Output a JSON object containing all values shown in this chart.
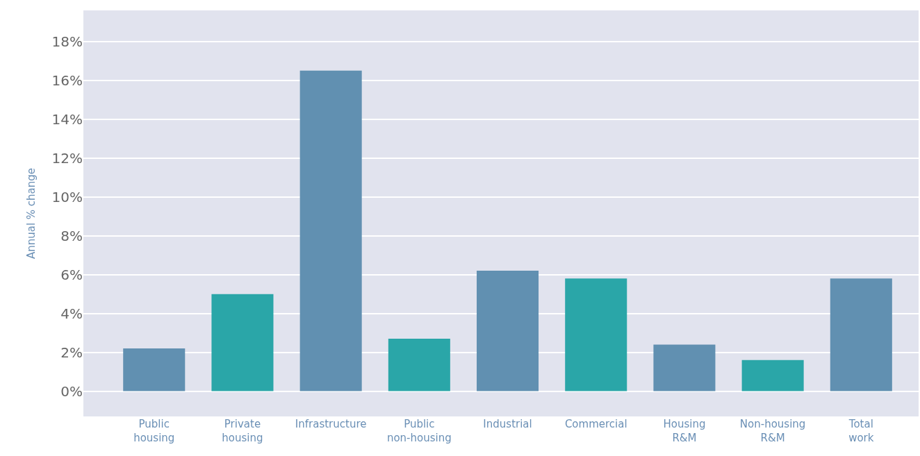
{
  "chart_data": {
    "type": "bar",
    "ylabel": "Annual % change",
    "categories": [
      "Public housing",
      "Private housing",
      "Infrastructure",
      "Public non-housing",
      "Industrial",
      "Commercial",
      "Housing R&M",
      "Non-housing R&M",
      "Total work"
    ],
    "values": [
      2.2,
      5.0,
      16.5,
      2.7,
      6.2,
      5.8,
      2.4,
      1.6,
      5.8
    ],
    "colors": [
      "#6190b1",
      "#2aa6a8",
      "#6190b1",
      "#2aa6a8",
      "#6190b1",
      "#2aa6a8",
      "#6190b1",
      "#2aa6a8",
      "#6190b1"
    ],
    "ylim": [
      -1.3,
      19.6
    ],
    "yticks": [
      {
        "value": 0,
        "label": "0%"
      },
      {
        "value": 2,
        "label": "2%"
      },
      {
        "value": 4,
        "label": "4%"
      },
      {
        "value": 6,
        "label": "6%"
      },
      {
        "value": 8,
        "label": "8%"
      },
      {
        "value": 10,
        "label": "10%"
      },
      {
        "value": 12,
        "label": "12%"
      },
      {
        "value": 14,
        "label": "14%"
      },
      {
        "value": 16,
        "label": "16%"
      },
      {
        "value": 18,
        "label": "18%"
      }
    ],
    "grid": "y"
  }
}
